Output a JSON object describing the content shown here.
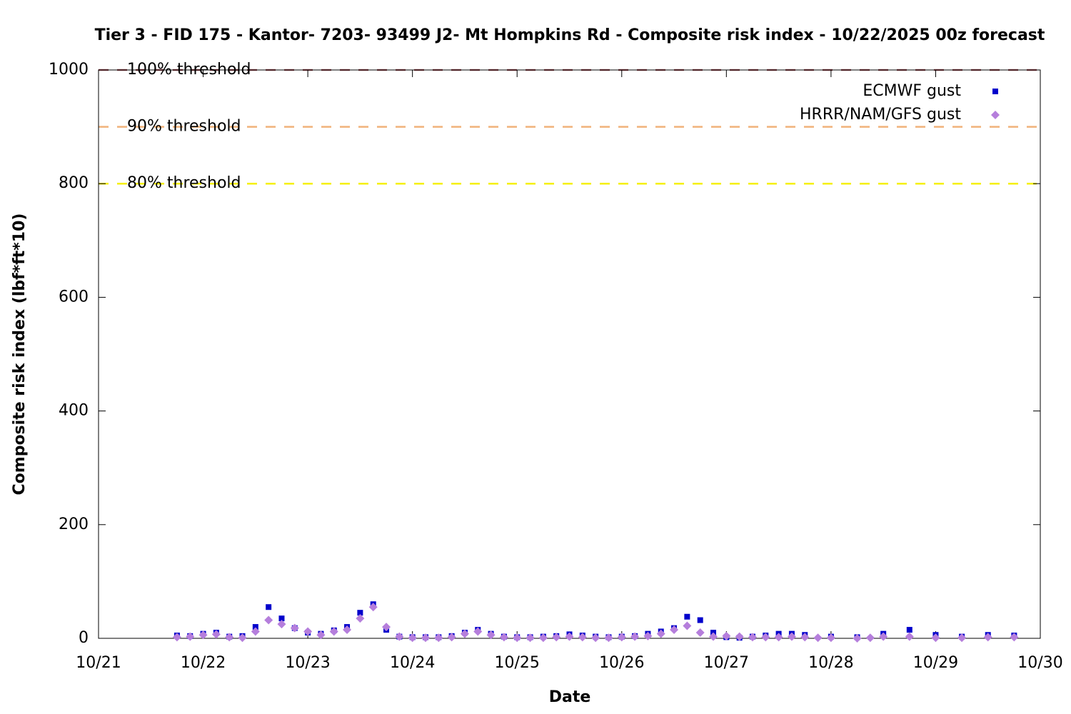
{
  "chart_data": {
    "type": "scatter",
    "title": "Tier 3 - FID 175 - Kantor- 7203- 93499 J2- Mt Hompkins Rd - Composite risk index - 10/22/2025 00z forecast",
    "x_label": "Date",
    "y_label": "Composite risk index (lbf*ft*10)",
    "xlim": [
      21,
      30
    ],
    "xticks": [
      {
        "value": 21,
        "label": "10/21"
      },
      {
        "value": 22,
        "label": "10/22"
      },
      {
        "value": 23,
        "label": "10/23"
      },
      {
        "value": 24,
        "label": "10/24"
      },
      {
        "value": 25,
        "label": "10/25"
      },
      {
        "value": 26,
        "label": "10/26"
      },
      {
        "value": 27,
        "label": "10/27"
      },
      {
        "value": 28,
        "label": "10/28"
      },
      {
        "value": 29,
        "label": "10/29"
      },
      {
        "value": 30,
        "label": "10/30"
      }
    ],
    "ylim": [
      0,
      1000
    ],
    "yticks": [
      0,
      200,
      400,
      600,
      800,
      1000
    ],
    "legend": "top-right",
    "thresholds": [
      {
        "label": "100% threshold",
        "value": 1000,
        "color": "#a0525a"
      },
      {
        "label": "90% threshold",
        "value": 900,
        "color": "#f0b27a"
      },
      {
        "label": "80% threshold",
        "value": 800,
        "color": "#f5f000"
      }
    ],
    "series": [
      {
        "name": "ECMWF gust",
        "color": "#0000cc",
        "marker": "square",
        "x": [
          21.75,
          21.875,
          22,
          22.125,
          22.25,
          22.375,
          22.5,
          22.625,
          22.75,
          22.875,
          23,
          23.125,
          23.25,
          23.375,
          23.5,
          23.625,
          23.75,
          23.875,
          24,
          24.125,
          24.25,
          24.375,
          24.5,
          24.625,
          24.75,
          24.875,
          25,
          25.125,
          25.25,
          25.375,
          25.5,
          25.625,
          25.75,
          25.875,
          26,
          26.125,
          26.25,
          26.375,
          26.5,
          26.625,
          26.75,
          26.875,
          27,
          27.125,
          27.25,
          27.375,
          27.5,
          27.625,
          27.75,
          28,
          28.25,
          28.5,
          28.75,
          29,
          29.25,
          29.5,
          29.75
        ],
        "values": [
          5,
          4,
          8,
          10,
          3,
          4,
          20,
          55,
          35,
          18,
          10,
          8,
          14,
          20,
          45,
          60,
          15,
          3,
          2,
          2,
          2,
          4,
          10,
          15,
          8,
          3,
          2,
          2,
          3,
          4,
          7,
          5,
          3,
          2,
          3,
          4,
          8,
          12,
          18,
          38,
          32,
          10,
          2,
          1,
          3,
          5,
          8,
          8,
          6,
          3,
          2,
          8,
          15,
          6,
          3,
          6,
          5
        ]
      },
      {
        "name": "HRRR/NAM/GFS gust",
        "color": "#b57edc",
        "marker": "diamond",
        "x": [
          21.75,
          21.875,
          22,
          22.125,
          22.25,
          22.375,
          22.5,
          22.625,
          22.75,
          22.875,
          23,
          23.125,
          23.25,
          23.375,
          23.5,
          23.625,
          23.75,
          23.875,
          24,
          24.125,
          24.25,
          24.375,
          24.5,
          24.625,
          24.75,
          24.875,
          25,
          25.125,
          25.25,
          25.375,
          25.5,
          25.625,
          25.75,
          25.875,
          26,
          26.125,
          26.25,
          26.375,
          26.5,
          26.625,
          26.75,
          26.875,
          27,
          27.125,
          27.25,
          27.375,
          27.5,
          27.625,
          27.75,
          27.875,
          28,
          28.25,
          28.375,
          28.5,
          28.75,
          29,
          29.25,
          29.5,
          29.75
        ],
        "values": [
          2,
          3,
          6,
          7,
          2,
          1,
          12,
          32,
          25,
          18,
          12,
          6,
          12,
          15,
          35,
          55,
          20,
          3,
          1,
          1,
          1,
          2,
          8,
          12,
          6,
          2,
          1,
          1,
          1,
          2,
          3,
          2,
          1,
          1,
          2,
          3,
          4,
          8,
          15,
          22,
          10,
          3,
          4,
          3,
          2,
          2,
          2,
          3,
          2,
          1,
          1,
          0,
          1,
          3,
          3,
          1,
          1,
          2,
          2
        ]
      }
    ]
  }
}
